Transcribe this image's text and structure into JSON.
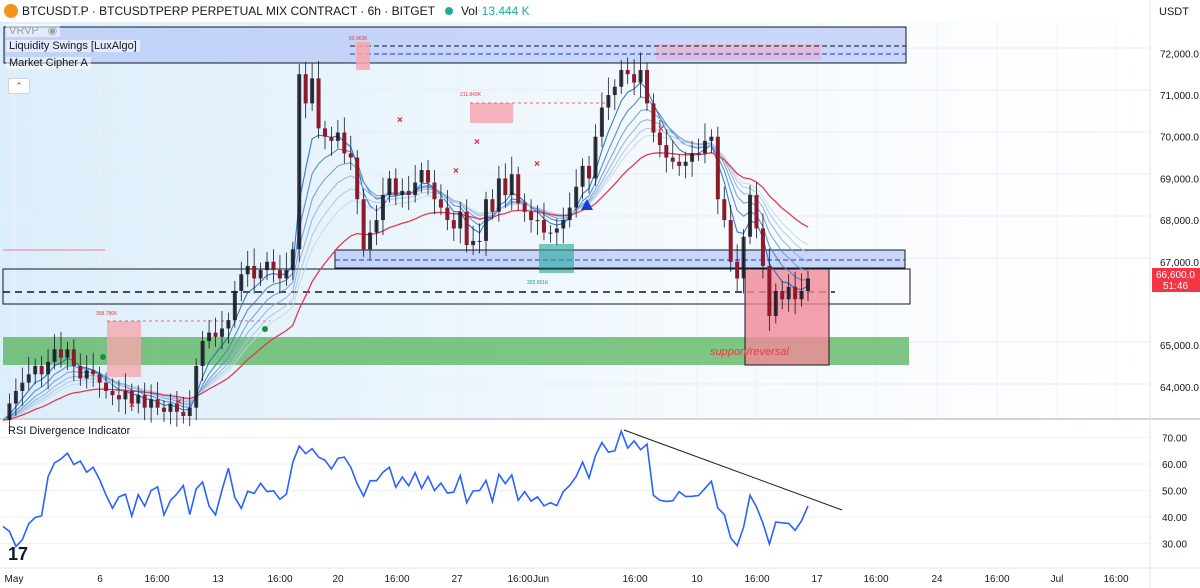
{
  "header": {
    "symbol_title": "BTCUSDT.P · BTCUSDTPERP PERPETUAL MIX CONTRACT · 6h · BITGET",
    "volume_label": "Vol",
    "volume_value": "13.444 K"
  },
  "currency_selector": "USDT",
  "legend": {
    "vrvp": "VRVP",
    "liquidity_swings": "Liquidity Swings [LuxAlgo]",
    "market_cipher": "Market Cipher A"
  },
  "rsi_panel": {
    "title": "RSI Divergence Indicator"
  },
  "price_axis": {
    "labels": [
      "72,000.0",
      "71,000.0",
      "70,000.0",
      "69,000.0",
      "68,000.0",
      "67,000.0",
      "65,000.0",
      "64,000.0"
    ],
    "current_price": "66,600.0",
    "countdown": "51:46"
  },
  "rsi_axis": {
    "labels": [
      "70.00",
      "60.00",
      "50.00",
      "40.00",
      "30.00"
    ]
  },
  "time_axis": {
    "labels": [
      "May",
      "6",
      "16:00",
      "13",
      "16:00",
      "20",
      "16:00",
      "27",
      "16:00",
      "Jun",
      "16:00",
      "10",
      "16:00",
      "17",
      "16:00",
      "24",
      "16:00",
      "Jul",
      "16:00"
    ]
  },
  "annotations": {
    "box_labels": [
      "89.963K",
      "211.843K",
      "302.651K",
      "358.786K"
    ],
    "support_text": "support/reversal"
  },
  "colors": {
    "up": "#089981",
    "down": "#f23645",
    "rsi_line": "#2962ff",
    "band_blue": "#c5d3fb",
    "band_green": "#4caf50",
    "box_red": "#f7a6ae"
  },
  "chart_data": [
    {
      "type": "candlestick",
      "title": "BTCUSDT.P · 6h",
      "ylim": [
        63300,
        72800
      ],
      "close": [
        63200,
        63600,
        63900,
        64100,
        64300,
        64500,
        64300,
        64600,
        64900,
        64700,
        64900,
        64500,
        64200,
        64400,
        64300,
        64100,
        63900,
        63800,
        63700,
        63900,
        63600,
        63800,
        63500,
        63700,
        63500,
        63400,
        63600,
        63400,
        63300,
        63500,
        64500,
        65100,
        65300,
        65200,
        65400,
        65600,
        66300,
        66700,
        66900,
        66600,
        66800,
        67000,
        66800,
        66600,
        66800,
        67300,
        71500,
        70800,
        71400,
        70200,
        70000,
        69900,
        70100,
        69600,
        69500,
        68500,
        67300,
        67700,
        68000,
        68600,
        69000,
        68600,
        68700,
        68600,
        68900,
        69200,
        68900,
        68500,
        68300,
        68000,
        67800,
        68200,
        67400,
        67500,
        67500,
        68500,
        68200,
        69000,
        68600,
        69100,
        68400,
        68200,
        68000,
        68000,
        67700,
        67700,
        67800,
        68000,
        68300,
        68800,
        69300,
        69000,
        70000,
        70700,
        71000,
        71200,
        71600,
        71500,
        71300,
        71600,
        70800,
        70100,
        69800,
        69500,
        69400,
        69300,
        69400,
        69600,
        69600,
        69900,
        70000,
        68500,
        68000,
        67000,
        66600,
        67600,
        68600,
        67800,
        66900,
        65700,
        66300,
        66100,
        66400,
        66100,
        66300,
        66600
      ],
      "price_labels": [
        "72,000.0",
        "71,000.0",
        "70,000.0",
        "69,000.0",
        "68,000.0",
        "67,000.0",
        "65,000.0",
        "64,000.0"
      ],
      "current_price": 66600
    },
    {
      "type": "line",
      "title": "RSI Divergence Indicator",
      "ylim": [
        25,
        76
      ],
      "series": [
        {
          "values": [
            36.4,
            34.6,
            28.9,
            31.4,
            37.5,
            39.8,
            40.5,
            55.2,
            60.4,
            61.9,
            64.1,
            59.8,
            61.1,
            56.9,
            58.8,
            54.1,
            48.3,
            43.3,
            47.6,
            48.6,
            40.3,
            48.4,
            44.1,
            50.0,
            51.4,
            40.8,
            46.2,
            48.7,
            51.9,
            41.0,
            50.6,
            53.2,
            44.1,
            40.8,
            50.2,
            58.4,
            47.4,
            43.3,
            49.7,
            48.9,
            52.7,
            49.6,
            49.9,
            46.7,
            48.6,
            60.6,
            66.8,
            63.9,
            65.8,
            62.6,
            61.4,
            58.1,
            62.1,
            62.6,
            58.8,
            52.5,
            47.9,
            53.7,
            53.7,
            56.9,
            58.8,
            51.2,
            55.1,
            51.8,
            56.7,
            50.8,
            55.3,
            50.0,
            52.8,
            49.0,
            49.4,
            55.7,
            45.4,
            49.8,
            50.0,
            53.8,
            45.8,
            56.1,
            52.6,
            55.9,
            46.3,
            49.6,
            46.0,
            47.6,
            44.2,
            45.4,
            44.3,
            49.6,
            51.9,
            55.3,
            60.8,
            54.7,
            63.2,
            68.1,
            64.5,
            65.0,
            72.4,
            66.0,
            68.7,
            65.4,
            67.5,
            48.2,
            46.3,
            45.9,
            46.1,
            49.6,
            47.7,
            47.8,
            48.1,
            50.8,
            53.5,
            43.4,
            40.9,
            32.1,
            29.2,
            36.2,
            48.2,
            43.8,
            37.7,
            29.8,
            38.1,
            37.8,
            37.6,
            35.0,
            38.6,
            44.2
          ]
        }
      ],
      "ylabels": [
        "70.00",
        "60.00",
        "50.00",
        "40.00",
        "30.00"
      ]
    }
  ]
}
